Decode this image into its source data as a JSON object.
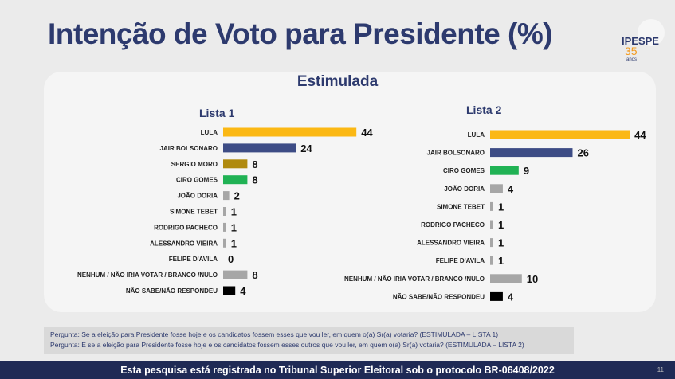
{
  "title": "Intenção de Voto para Presidente (%)",
  "logo": {
    "name": "IPESPE",
    "years": "35",
    "sub": "anos"
  },
  "chart_data": [
    {
      "type": "bar",
      "orientation": "horizontal",
      "title": "Estimulada",
      "subtitle": "Lista 1",
      "categories": [
        "LULA",
        "JAIR BOLSONARO",
        "SERGIO MORO",
        "CIRO GOMES",
        "JOÃO DORIA",
        "SIMONE TEBET",
        "RODRIGO PACHECO",
        "ALESSANDRO VIEIRA",
        "FELIPE D'AVILA",
        "NENHUM / NÃO IRIA VOTAR / BRANCO /NULO",
        "NÃO SABE/NÃO RESPONDEU"
      ],
      "values": [
        44,
        24,
        8,
        8,
        2,
        1,
        1,
        1,
        0,
        8,
        4
      ],
      "colors": [
        "#FBB814",
        "#3D4C85",
        "#B08A0E",
        "#20B254",
        "#A6A6A6",
        "#A6A6A6",
        "#A6A6A6",
        "#A6A6A6",
        "#A6A6A6",
        "#A6A6A6",
        "#000000"
      ]
    },
    {
      "type": "bar",
      "orientation": "horizontal",
      "subtitle": "Lista 2",
      "categories": [
        "LULA",
        "JAIR BOLSONARO",
        "CIRO GOMES",
        "JOÃO DORIA",
        "SIMONE TEBET",
        "RODRIGO PACHECO",
        "ALESSANDRO VIEIRA",
        "FELIPE D'AVILA",
        "NENHUM / NÃO IRIA VOTAR / BRANCO /NULO",
        "NÃO SABE/NÃO RESPONDEU"
      ],
      "values": [
        44,
        26,
        9,
        4,
        1,
        1,
        1,
        1,
        10,
        4
      ],
      "colors": [
        "#FBB814",
        "#3D4C85",
        "#20B254",
        "#A6A6A6",
        "#A6A6A6",
        "#A6A6A6",
        "#A6A6A6",
        "#A6A6A6",
        "#A6A6A6",
        "#000000"
      ]
    }
  ],
  "questions": [
    "Pergunta:  Se a eleição para Presidente fosse hoje e os candidatos fossem esses que vou ler, em quem o(a) Sr(a) votaria? (ESTIMULADA – LISTA 1)",
    "Pergunta:  E se a eleição para Presidente fosse hoje e os candidatos fossem esses outros que vou ler, em quem o(a) Sr(a) votaria?  (ESTIMULADA – LISTA 2)"
  ],
  "footer": "Esta pesquisa está registrada no Tribunal Superior Eleitoral sob o protocolo BR-06408/2022",
  "page_number": "11"
}
